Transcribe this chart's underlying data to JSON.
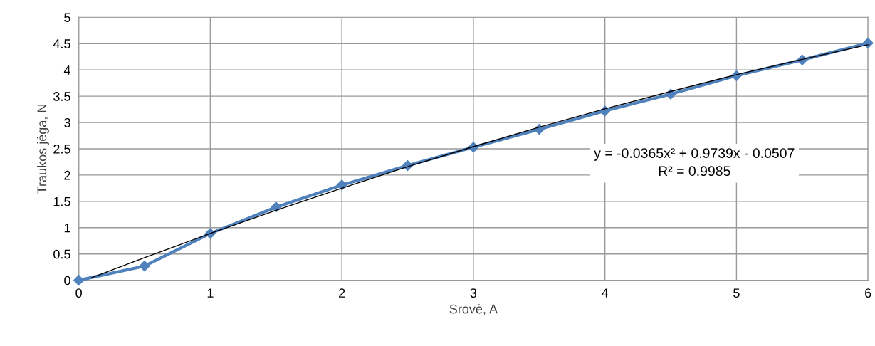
{
  "chart_data": {
    "type": "line",
    "xlabel": "Srovė, A",
    "ylabel": "Traukos jėga, N",
    "x": [
      0,
      0.5,
      1,
      1.5,
      2,
      2.5,
      3,
      3.5,
      4,
      4.5,
      5,
      5.5,
      6
    ],
    "series": [
      {
        "color": "#4f81bd",
        "marker": "diamond",
        "values": [
          0,
          0.27,
          0.89,
          1.39,
          1.81,
          2.18,
          2.53,
          2.87,
          3.22,
          3.54,
          3.89,
          4.19,
          4.51
        ]
      },
      {
        "type": "line",
        "color": "#000000",
        "marker": "none",
        "x": [
          0.1,
          0.5,
          1,
          1.5,
          2,
          2.5,
          3,
          3.5,
          4,
          4.5,
          5,
          5.5,
          6
        ],
        "values": [
          0.05,
          0.43,
          0.89,
          1.33,
          1.75,
          2.16,
          2.54,
          2.91,
          3.26,
          3.59,
          3.91,
          4.2,
          4.48
        ]
      }
    ],
    "xlim": [
      0,
      6
    ],
    "xticks": [
      0,
      1,
      2,
      3,
      4,
      5,
      6
    ],
    "ylim": [
      0,
      5
    ],
    "yticks": [
      0,
      0.5,
      1,
      1.5,
      2,
      2.5,
      3,
      3.5,
      4,
      4.5,
      5
    ],
    "grid": true,
    "annotations": [
      "y = -0.0365x² + 0.9739x - 0.0507\nR² = 0.9985"
    ]
  }
}
